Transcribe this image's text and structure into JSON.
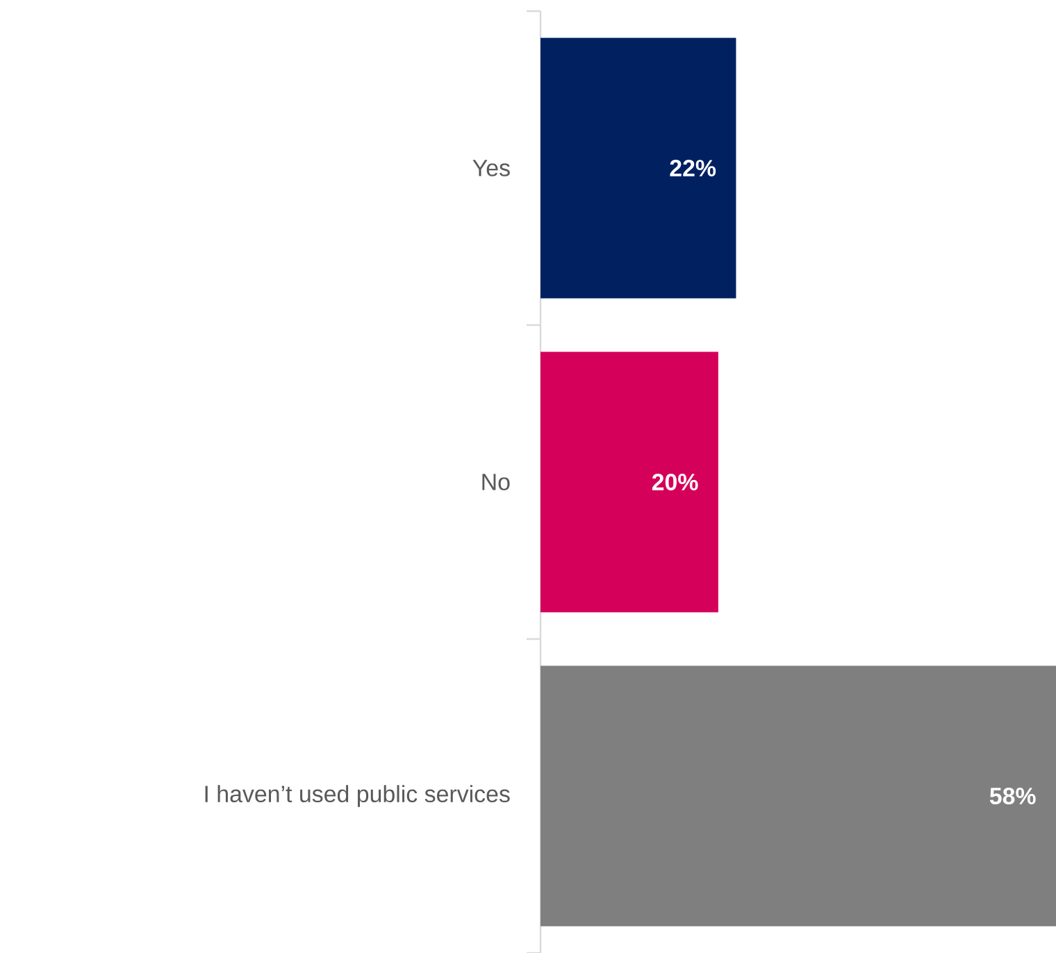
{
  "chart_data": {
    "type": "bar",
    "orientation": "horizontal",
    "categories": [
      "Yes",
      "No",
      "I haven’t used public services"
    ],
    "values": [
      22,
      20,
      58
    ],
    "colors": [
      "#002060",
      "#d5005a",
      "#7f7f7f"
    ],
    "value_labels": [
      "22%",
      "20%",
      "58%"
    ]
  }
}
